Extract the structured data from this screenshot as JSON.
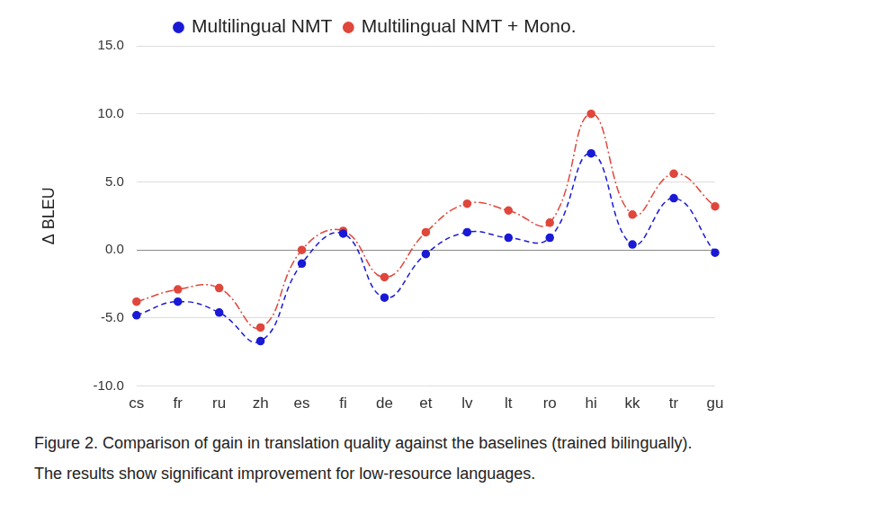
{
  "chart_data": {
    "type": "line",
    "y_label": "Δ BLEU",
    "caption": [
      "Figure 2. Comparison of gain in translation quality against the baselines (trained bilingually).",
      "The results show significant improvement for low-resource languages."
    ],
    "categories": [
      "cs",
      "fr",
      "ru",
      "zh",
      "es",
      "fi",
      "de",
      "et",
      "lv",
      "lt",
      "ro",
      "hi",
      "kk",
      "tr",
      "gu"
    ],
    "series": [
      {
        "name": "Multilingual NMT",
        "color": "#1a1ad6",
        "marker": "circle",
        "line_style": "dashed",
        "values": [
          -4.8,
          -3.8,
          -4.6,
          -6.7,
          -1.0,
          1.2,
          -3.5,
          -0.3,
          1.3,
          0.9,
          0.9,
          7.1,
          0.4,
          3.8,
          -0.2
        ]
      },
      {
        "name": "Multilingual NMT + Mono.",
        "color": "#e0473c",
        "marker": "circle",
        "line_style": "dashdot",
        "values": [
          -3.8,
          -2.9,
          -2.8,
          -5.7,
          0.0,
          1.4,
          -2.0,
          1.3,
          3.4,
          2.9,
          2.0,
          10.0,
          2.6,
          5.6,
          3.2
        ]
      }
    ],
    "ylim": [
      -10,
      15
    ],
    "yticks": [
      {
        "value": -10,
        "label": "-10.0"
      },
      {
        "value": -5,
        "label": "-5.0"
      },
      {
        "value": 0,
        "label": "0.0"
      },
      {
        "value": 5,
        "label": "5.0"
      },
      {
        "value": 10,
        "label": "10.0"
      },
      {
        "value": 15,
        "label": "15.0"
      }
    ],
    "grid": true,
    "legend": "top"
  }
}
